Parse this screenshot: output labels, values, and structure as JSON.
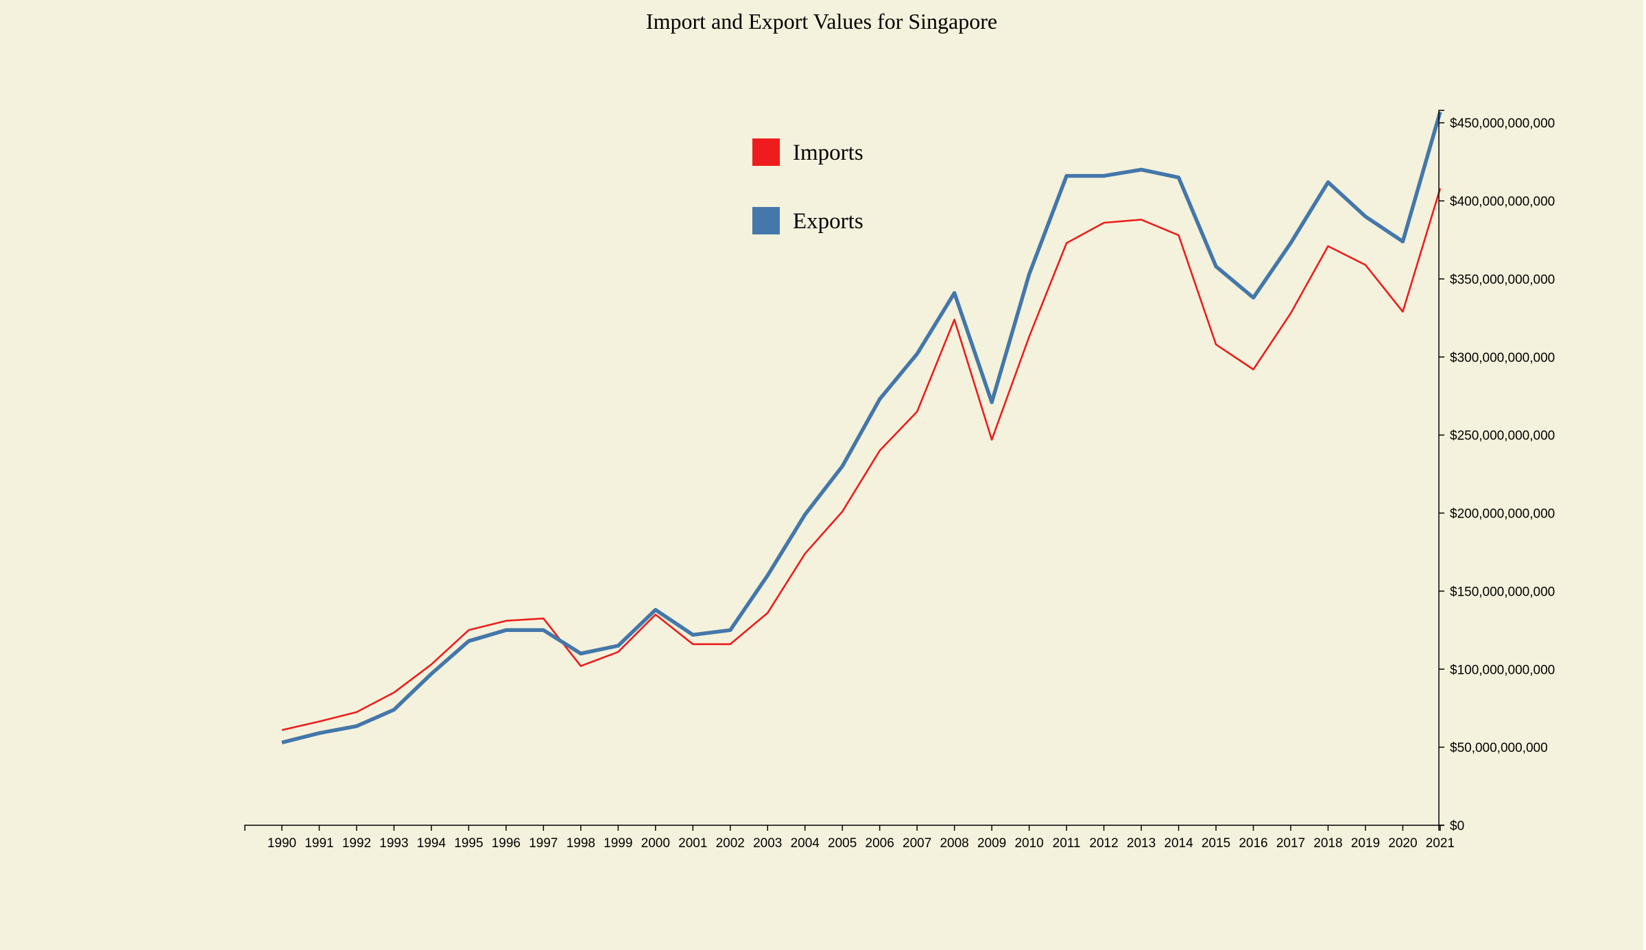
{
  "chart_data": {
    "type": "line",
    "title": "Import and Export Values for Singapore",
    "x": [
      1990,
      1991,
      1992,
      1993,
      1994,
      1995,
      1996,
      1997,
      1998,
      1999,
      2000,
      2001,
      2002,
      2003,
      2004,
      2005,
      2006,
      2007,
      2008,
      2009,
      2010,
      2011,
      2012,
      2013,
      2014,
      2015,
      2016,
      2017,
      2018,
      2019,
      2020,
      2021
    ],
    "x_tick_labels": [
      "1990",
      "1991",
      "1992",
      "1993",
      "1994",
      "1995",
      "1996",
      "1997",
      "1998",
      "1999",
      "2000",
      "2001",
      "2002",
      "2003",
      "2004",
      "2005",
      "2006",
      "2007",
      "2008",
      "2009",
      "2010",
      "2011",
      "2012",
      "2013",
      "2014",
      "2015",
      "2016",
      "2017",
      "2018",
      "2019",
      "2020",
      "2021"
    ],
    "ylim": [
      0,
      458000000000
    ],
    "y_ticks": [
      0,
      50000000000,
      100000000000,
      150000000000,
      200000000000,
      250000000000,
      300000000000,
      350000000000,
      400000000000,
      450000000000
    ],
    "y_tick_labels": [
      "$0",
      "$50,000,000,000",
      "$100,000,000,000",
      "$150,000,000,000",
      "$200,000,000,000",
      "$250,000,000,000",
      "$300,000,000,000",
      "$350,000,000,000",
      "$400,000,000,000",
      "$450,000,000,000"
    ],
    "y_axis_side": "right",
    "grid": false,
    "legend_position": "top-center",
    "series": [
      {
        "name": "Imports",
        "color": "#ee1c1c",
        "values": [
          61000000000,
          66500000000,
          72500000000,
          85000000000,
          103000000000,
          125000000000,
          131000000000,
          132500000000,
          102000000000,
          111000000000,
          135000000000,
          116000000000,
          116000000000,
          136000000000,
          174000000000,
          201000000000,
          240000000000,
          265000000000,
          324000000000,
          247000000000,
          313000000000,
          373000000000,
          386000000000,
          388000000000,
          378000000000,
          308000000000,
          292000000000,
          328000000000,
          371000000000,
          359000000000,
          329000000000,
          408000000000
        ]
      },
      {
        "name": "Exports",
        "color": "#4477aa",
        "values": [
          53000000000,
          59000000000,
          63500000000,
          74000000000,
          97000000000,
          118000000000,
          125000000000,
          125000000000,
          110000000000,
          115000000000,
          138000000000,
          122000000000,
          125000000000,
          160000000000,
          199000000000,
          230000000000,
          273000000000,
          302000000000,
          341000000000,
          271000000000,
          353000000000,
          416000000000,
          416000000000,
          420000000000,
          415000000000,
          358000000000,
          338000000000,
          373000000000,
          412000000000,
          390000000000,
          374000000000,
          457000000000
        ]
      }
    ]
  }
}
